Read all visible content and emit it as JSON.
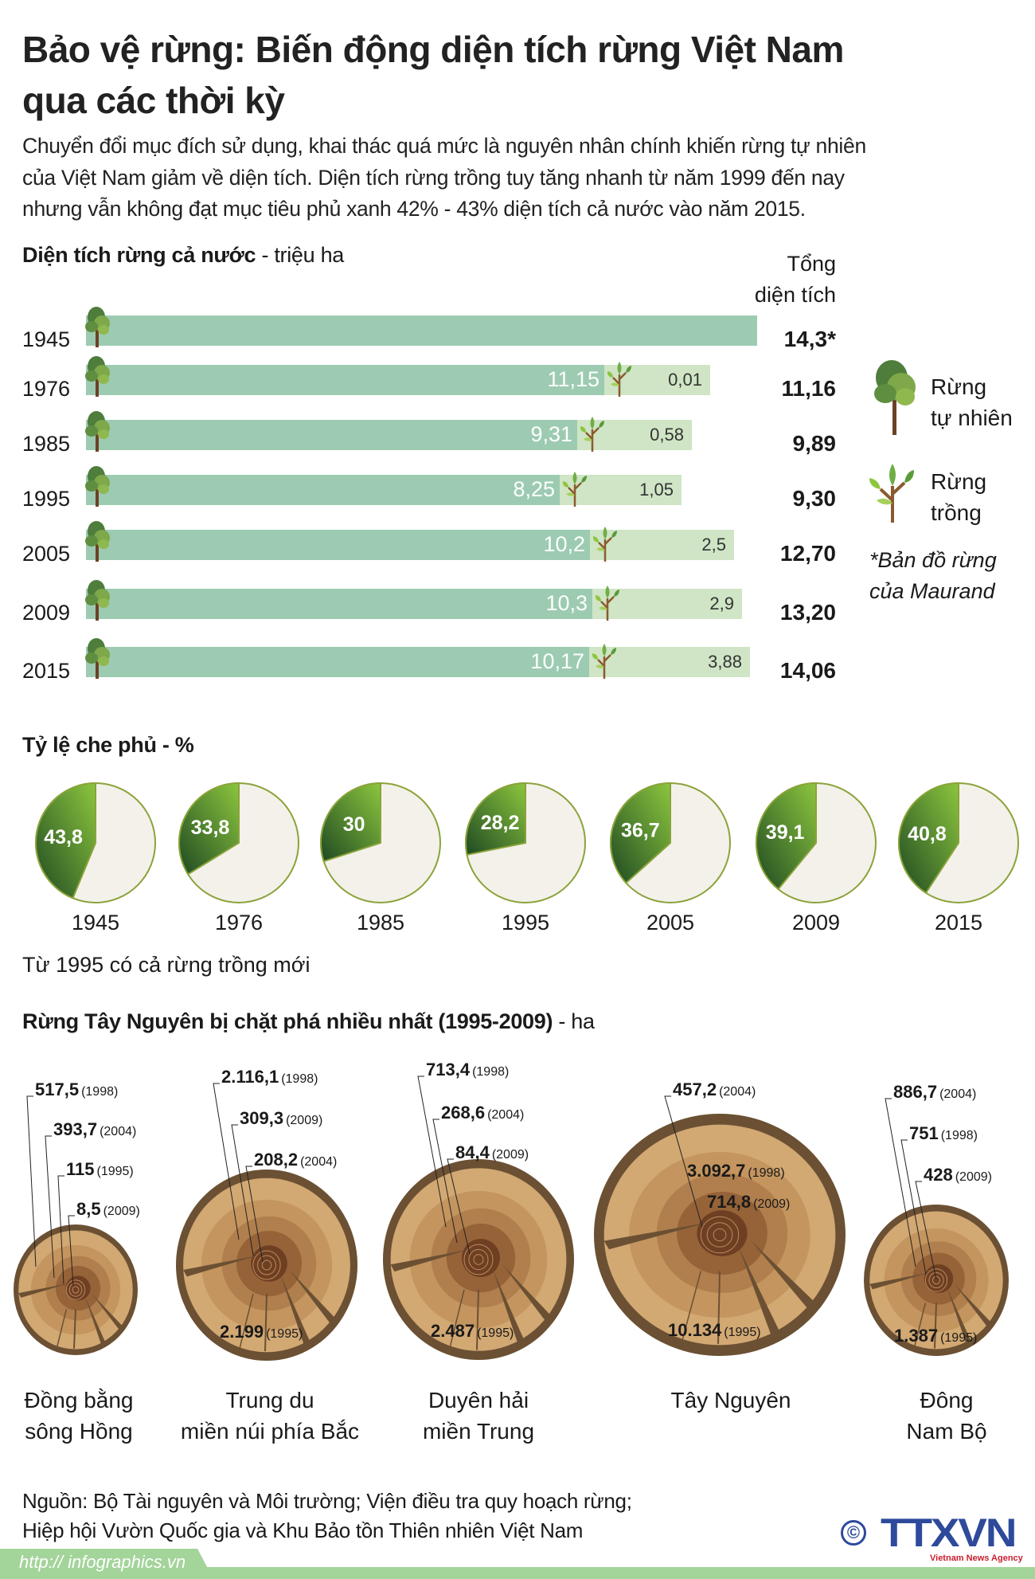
{
  "header": {
    "title_lines": [
      "Bảo vệ rừng: Biến động diện tích rừng Việt Nam",
      "qua các thời kỳ"
    ],
    "intro_lines": [
      "Chuyển đổi mục đích sử dụng, khai thác quá mức là nguyên nhân chính khiến rừng tự nhiên",
      "của Việt Nam giảm về diện tích. Diện tích rừng trồng tuy tăng nhanh từ năm 1999 đến nay",
      "nhưng vẫn không đạt mục tiêu phủ xanh 42% - 43% diện tích cả nước vào năm 2015."
    ]
  },
  "area_section": {
    "title": "Diện tích rừng cả nước",
    "unit": " - triệu ha",
    "total_header_lines": [
      "Tổng",
      "diện tích"
    ],
    "rows": [
      {
        "year": "1945",
        "natural": "",
        "planted": "",
        "total": "14,3*"
      },
      {
        "year": "1976",
        "natural": "11,15",
        "planted": "0,01",
        "total": "11,16"
      },
      {
        "year": "1985",
        "natural": "9,31",
        "planted": "0,58",
        "total": "9,89"
      },
      {
        "year": "1995",
        "natural": "8,25",
        "planted": "1,05",
        "total": "9,30"
      },
      {
        "year": "2005",
        "natural": "10,2",
        "planted": "2,5",
        "total": "12,70"
      },
      {
        "year": "2009",
        "natural": "10,3",
        "planted": "2,9",
        "total": "13,20"
      },
      {
        "year": "2015",
        "natural": "10,17",
        "planted": "3,88",
        "total": "14,06"
      }
    ],
    "legend": {
      "natural_lines": [
        "Rừng",
        "tự nhiên"
      ],
      "planted_lines": [
        "Rừng",
        "trồng"
      ],
      "note_lines": [
        "*Bản đồ rừng",
        "của Maurand"
      ]
    },
    "colors": {
      "natural": "#9ccbb1",
      "planted": "#cfe5c5"
    }
  },
  "coverage_section": {
    "title": "Tỷ lệ che phủ - %",
    "note": "Từ 1995 có cả rừng trồng mới",
    "pies": [
      {
        "year": "1945",
        "value": 43.8,
        "label": "43,8"
      },
      {
        "year": "1976",
        "value": 33.8,
        "label": "33,8"
      },
      {
        "year": "1985",
        "value": 30,
        "label": "30"
      },
      {
        "year": "1995",
        "value": 28.2,
        "label": "28,2"
      },
      {
        "year": "2005",
        "value": 36.7,
        "label": "36,7"
      },
      {
        "year": "2009",
        "value": 39.1,
        "label": "39,1"
      },
      {
        "year": "2015",
        "value": 40.8,
        "label": "40,8"
      }
    ],
    "colors": {
      "slice_dark": "#1f4a22",
      "slice_light": "#8cc63e",
      "rest": "#f4f1ea",
      "outline": "#8aa33a"
    }
  },
  "stump_section": {
    "title": "Rừng Tây Nguyên bị chặt phá nhiều nhất (1995-2009)",
    "unit": " - ha",
    "regions": [
      {
        "name_lines": [
          "Đồng bằng",
          "sông Hồng"
        ],
        "labels": [
          {
            "value": "517,5",
            "year": "(1998)"
          },
          {
            "value": "393,7",
            "year": "(2004)"
          },
          {
            "value": "115",
            "year": "(1995)"
          },
          {
            "value": "8,5",
            "year": "(2009)"
          }
        ]
      },
      {
        "name_lines": [
          "Trung du",
          "miền núi phía Bắc"
        ],
        "labels": [
          {
            "value": "2.116,1",
            "year": "(1998)"
          },
          {
            "value": "309,3",
            "year": "(2009)"
          },
          {
            "value": "208,2",
            "year": "(2004)"
          },
          {
            "value": "2.199",
            "year": "(1995)"
          }
        ]
      },
      {
        "name_lines": [
          "Duyên hải",
          "miền Trung"
        ],
        "labels": [
          {
            "value": "713,4",
            "year": "(1998)"
          },
          {
            "value": "268,6",
            "year": "(2004)"
          },
          {
            "value": "84,4",
            "year": "(2009)"
          },
          {
            "value": "2.487",
            "year": "(1995)"
          }
        ]
      },
      {
        "name_lines": [
          "Tây Nguyên",
          ""
        ],
        "labels": [
          {
            "value": "457,2",
            "year": "(2004)"
          },
          {
            "value": "3.092,7",
            "year": "(1998)"
          },
          {
            "value": "714,8",
            "year": "(2009)"
          },
          {
            "value": "10.134",
            "year": "(1995)"
          }
        ]
      },
      {
        "name_lines": [
          "Đông",
          "Nam Bộ"
        ],
        "labels": [
          {
            "value": "886,7",
            "year": "(2004)"
          },
          {
            "value": "751",
            "year": "(1998)"
          },
          {
            "value": "428",
            "year": "(2009)"
          },
          {
            "value": "1.387",
            "year": "(1995)"
          }
        ]
      }
    ]
  },
  "footer": {
    "source_lines": [
      "Nguồn: Bộ Tài nguyên và Môi trường; Viện điều tra quy hoạch rừng;",
      "Hiệp hội Vườn Quốc gia và Khu Bảo tồn Thiên nhiên Việt Nam"
    ],
    "url": "http:// infographics.vn",
    "copyright": "©",
    "logo_text": "TTXVN",
    "logo_sub": "Vietnam News Agency",
    "band_color": "#a3d49a"
  }
}
